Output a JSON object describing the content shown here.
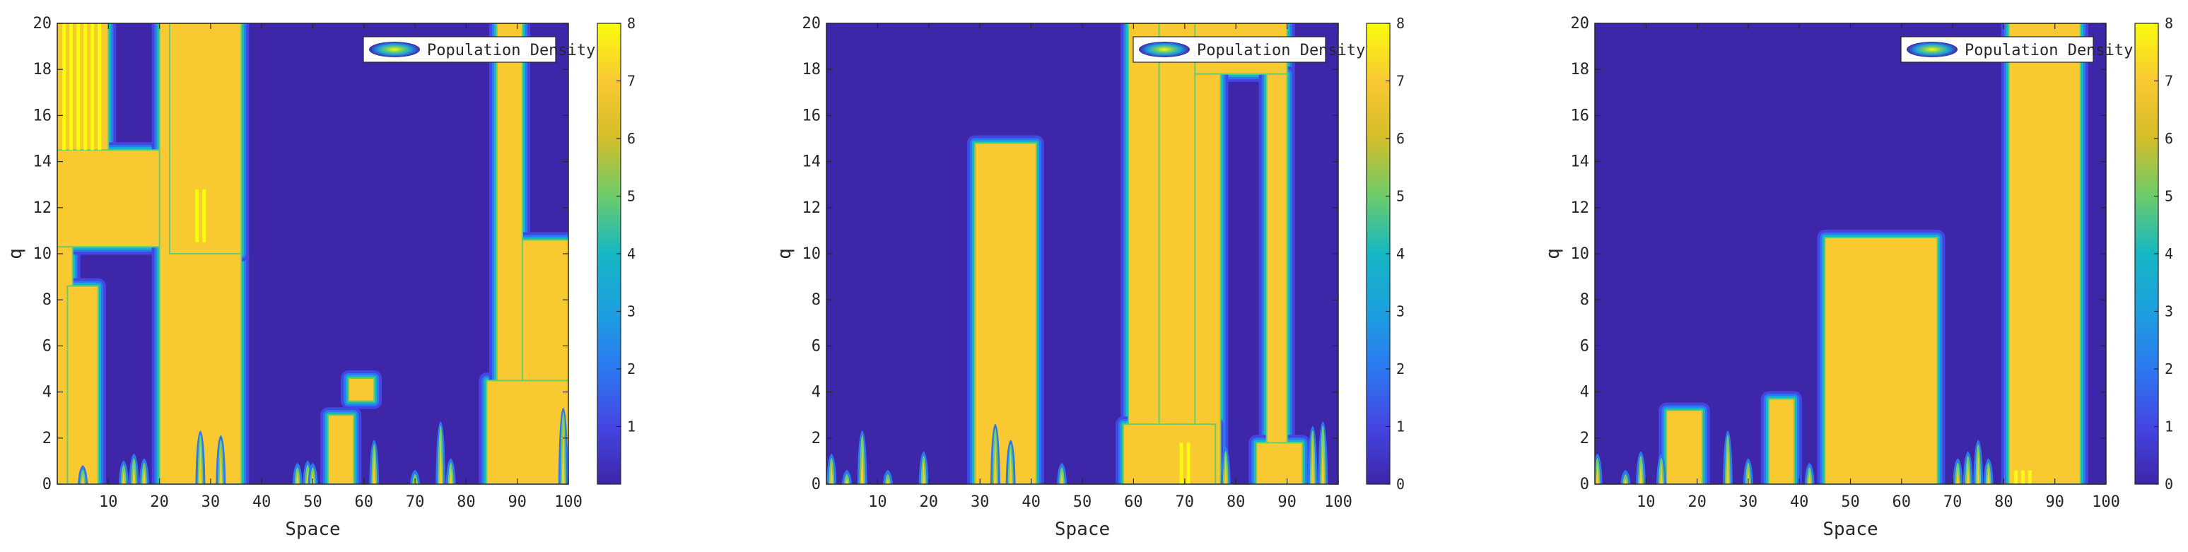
{
  "colors": {
    "low": "#3d26a8",
    "mid_blue": "#2c78f0",
    "teal": "#15b6c3",
    "green": "#6bcc6a",
    "olive": "#d4bd2a",
    "high": "#f9c932",
    "peak": "#f9fb0e"
  },
  "chart_data": [
    {
      "type": "heatmap",
      "title": "",
      "xlabel": "Space",
      "ylabel": "q",
      "xlim": [
        0,
        100
      ],
      "ylim": [
        0,
        20
      ],
      "x_ticks": [
        10,
        20,
        30,
        40,
        50,
        60,
        70,
        80,
        90,
        100
      ],
      "y_ticks": [
        0,
        2,
        4,
        6,
        8,
        10,
        12,
        14,
        16,
        18,
        20
      ],
      "colorbar": {
        "min": 0,
        "max": 8,
        "ticks": [
          1,
          2,
          3,
          4,
          5,
          6,
          7,
          8
        ]
      },
      "legend": {
        "label": "Population Density",
        "position": "top-right"
      },
      "high_regions": [
        {
          "x": [
            0,
            10
          ],
          "y": [
            14.5,
            20
          ]
        },
        {
          "x": [
            0,
            3
          ],
          "y": [
            0,
            20
          ]
        },
        {
          "x": [
            0,
            22
          ],
          "y": [
            10.3,
            14.5
          ]
        },
        {
          "x": [
            2,
            8
          ],
          "y": [
            0,
            8.6
          ]
        },
        {
          "x": [
            20,
            36
          ],
          "y": [
            0,
            20
          ]
        },
        {
          "x": [
            22,
            36
          ],
          "y": [
            10,
            20
          ]
        },
        {
          "x": [
            84,
            100
          ],
          "y": [
            0,
            4.5
          ]
        },
        {
          "x": [
            86,
            91
          ],
          "y": [
            4.5,
            20
          ]
        },
        {
          "x": [
            91,
            100
          ],
          "y": [
            4.5,
            10.6
          ]
        },
        {
          "x": [
            53,
            58
          ],
          "y": [
            0,
            3
          ]
        },
        {
          "x": [
            57,
            62
          ],
          "y": [
            3.6,
            4.6
          ]
        }
      ],
      "spikes": [
        {
          "x": 5,
          "h": 0.7
        },
        {
          "x": 13,
          "h": 0.9
        },
        {
          "x": 15,
          "h": 1.2
        },
        {
          "x": 17,
          "h": 1
        },
        {
          "x": 28,
          "h": 2.2
        },
        {
          "x": 32,
          "h": 2
        },
        {
          "x": 47,
          "h": 0.8
        },
        {
          "x": 49,
          "h": 0.9
        },
        {
          "x": 50,
          "h": 0.8
        },
        {
          "x": 62,
          "h": 1.8
        },
        {
          "x": 70,
          "h": 0.5
        },
        {
          "x": 75,
          "h": 2.6
        },
        {
          "x": 77,
          "h": 1
        },
        {
          "x": 99,
          "h": 3.2
        }
      ],
      "peak_regions": [
        {
          "x": [
            1,
            9
          ],
          "y": [
            14.5,
            20
          ]
        },
        {
          "x": [
            27,
            29
          ],
          "y": [
            10.5,
            12.8
          ]
        }
      ]
    },
    {
      "type": "heatmap",
      "title": "",
      "xlabel": "Space",
      "ylabel": "q",
      "xlim": [
        0,
        100
      ],
      "ylim": [
        0,
        20
      ],
      "x_ticks": [
        10,
        20,
        30,
        40,
        50,
        60,
        70,
        80,
        90,
        100
      ],
      "y_ticks": [
        0,
        2,
        4,
        6,
        8,
        10,
        12,
        14,
        16,
        18,
        20
      ],
      "colorbar": {
        "min": 0,
        "max": 8,
        "ticks": [
          0,
          1,
          2,
          3,
          4,
          5,
          6,
          7,
          8
        ]
      },
      "legend": {
        "label": "Population Density",
        "position": "top-right"
      },
      "high_regions": [
        {
          "x": [
            29,
            41
          ],
          "y": [
            0,
            14.8
          ]
        },
        {
          "x": [
            59,
            65
          ],
          "y": [
            0,
            20
          ]
        },
        {
          "x": [
            65,
            75
          ],
          "y": [
            0,
            20
          ]
        },
        {
          "x": [
            72,
            90
          ],
          "y": [
            17.8,
            20
          ]
        },
        {
          "x": [
            72,
            77
          ],
          "y": [
            0,
            17.8
          ]
        },
        {
          "x": [
            86,
            90
          ],
          "y": [
            0,
            17.8
          ]
        },
        {
          "x": [
            58,
            76
          ],
          "y": [
            0,
            2.6
          ]
        },
        {
          "x": [
            84,
            93
          ],
          "y": [
            0,
            1.8
          ]
        }
      ],
      "spikes": [
        {
          "x": 1,
          "h": 1.2
        },
        {
          "x": 4,
          "h": 0.5
        },
        {
          "x": 7,
          "h": 2.2
        },
        {
          "x": 12,
          "h": 0.5
        },
        {
          "x": 19,
          "h": 1.3
        },
        {
          "x": 33,
          "h": 2.5
        },
        {
          "x": 36,
          "h": 1.8
        },
        {
          "x": 46,
          "h": 0.8
        },
        {
          "x": 78,
          "h": 1.5
        },
        {
          "x": 95,
          "h": 2.4
        },
        {
          "x": 97,
          "h": 2.6
        }
      ],
      "peak_regions": [
        {
          "x": [
            69,
            71
          ],
          "y": [
            0,
            1.8
          ]
        }
      ]
    },
    {
      "type": "heatmap",
      "title": "",
      "xlabel": "Space",
      "ylabel": "q",
      "xlim": [
        0,
        100
      ],
      "ylim": [
        0,
        20
      ],
      "x_ticks": [
        10,
        20,
        30,
        40,
        50,
        60,
        70,
        80,
        90,
        100
      ],
      "y_ticks": [
        0,
        2,
        4,
        6,
        8,
        10,
        12,
        14,
        16,
        18,
        20
      ],
      "colorbar": {
        "min": 0,
        "max": 8,
        "ticks": [
          0,
          1,
          2,
          3,
          4,
          5,
          6,
          7,
          8
        ]
      },
      "legend": {
        "label": "Population Density",
        "position": "top-right"
      },
      "high_regions": [
        {
          "x": [
            45,
            67
          ],
          "y": [
            0,
            10.7
          ]
        },
        {
          "x": [
            81,
            95
          ],
          "y": [
            0,
            20
          ]
        },
        {
          "x": [
            14,
            21
          ],
          "y": [
            0,
            3.2
          ]
        },
        {
          "x": [
            34,
            39
          ],
          "y": [
            0,
            3.7
          ]
        }
      ],
      "spikes": [
        {
          "x": 0.5,
          "h": 1.2
        },
        {
          "x": 6,
          "h": 0.5
        },
        {
          "x": 9,
          "h": 1.3
        },
        {
          "x": 13,
          "h": 1.2
        },
        {
          "x": 26,
          "h": 2.2
        },
        {
          "x": 30,
          "h": 1
        },
        {
          "x": 42,
          "h": 0.8
        },
        {
          "x": 71,
          "h": 1
        },
        {
          "x": 73,
          "h": 1.3
        },
        {
          "x": 75,
          "h": 1.8
        },
        {
          "x": 77,
          "h": 1
        }
      ],
      "peak_regions": [
        {
          "x": [
            82,
            86
          ],
          "y": [
            0,
            0.6
          ]
        }
      ]
    }
  ]
}
